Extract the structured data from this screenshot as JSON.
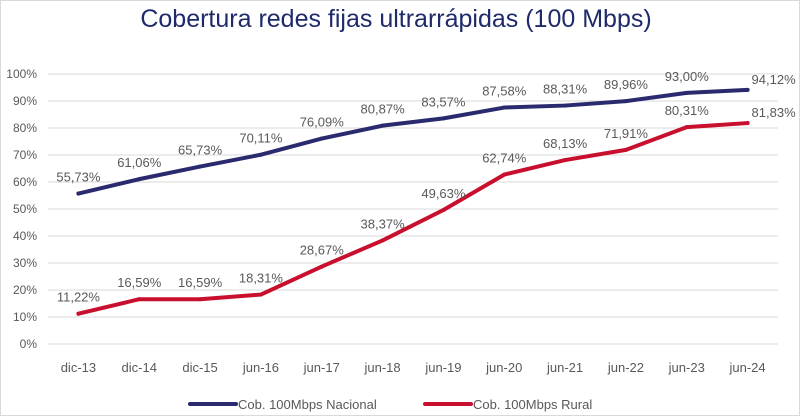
{
  "chart_data": {
    "type": "line",
    "title": "Cobertura redes fijas ultrarrápidas (100 Mbps)",
    "categories": [
      "dic-13",
      "dic-14",
      "dic-15",
      "jun-16",
      "jun-17",
      "jun-18",
      "jun-19",
      "jun-20",
      "jun-21",
      "jun-22",
      "jun-23",
      "jun-24"
    ],
    "ylim": [
      0,
      100
    ],
    "yticks": [
      "0%",
      "10%",
      "20%",
      "30%",
      "40%",
      "50%",
      "60%",
      "70%",
      "80%",
      "90%",
      "100%"
    ],
    "grid": true,
    "legend": "bottom",
    "series": [
      {
        "name": "Cob. 100Mbps Nacional",
        "color": "#2a2a6e",
        "values": [
          55.73,
          61.06,
          65.73,
          70.11,
          76.09,
          80.87,
          83.57,
          87.58,
          88.31,
          89.96,
          93.0,
          94.12
        ],
        "labels": [
          "55,73%",
          "61,06%",
          "65,73%",
          "70,11%",
          "76,09%",
          "80,87%",
          "83,57%",
          "87,58%",
          "88,31%",
          "89,96%",
          "93,00%",
          "94,12%"
        ]
      },
      {
        "name": "Cob. 100Mbps Rural",
        "color": "#c8102e",
        "values": [
          11.22,
          16.59,
          16.59,
          18.31,
          28.67,
          38.37,
          49.63,
          62.74,
          68.13,
          71.91,
          80.31,
          81.83
        ],
        "labels": [
          "11,22%",
          "16,59%",
          "16,59%",
          "18,31%",
          "28,67%",
          "38,37%",
          "49,63%",
          "62,74%",
          "68,13%",
          "71,91%",
          "80,31%",
          "81,83%"
        ]
      }
    ]
  }
}
